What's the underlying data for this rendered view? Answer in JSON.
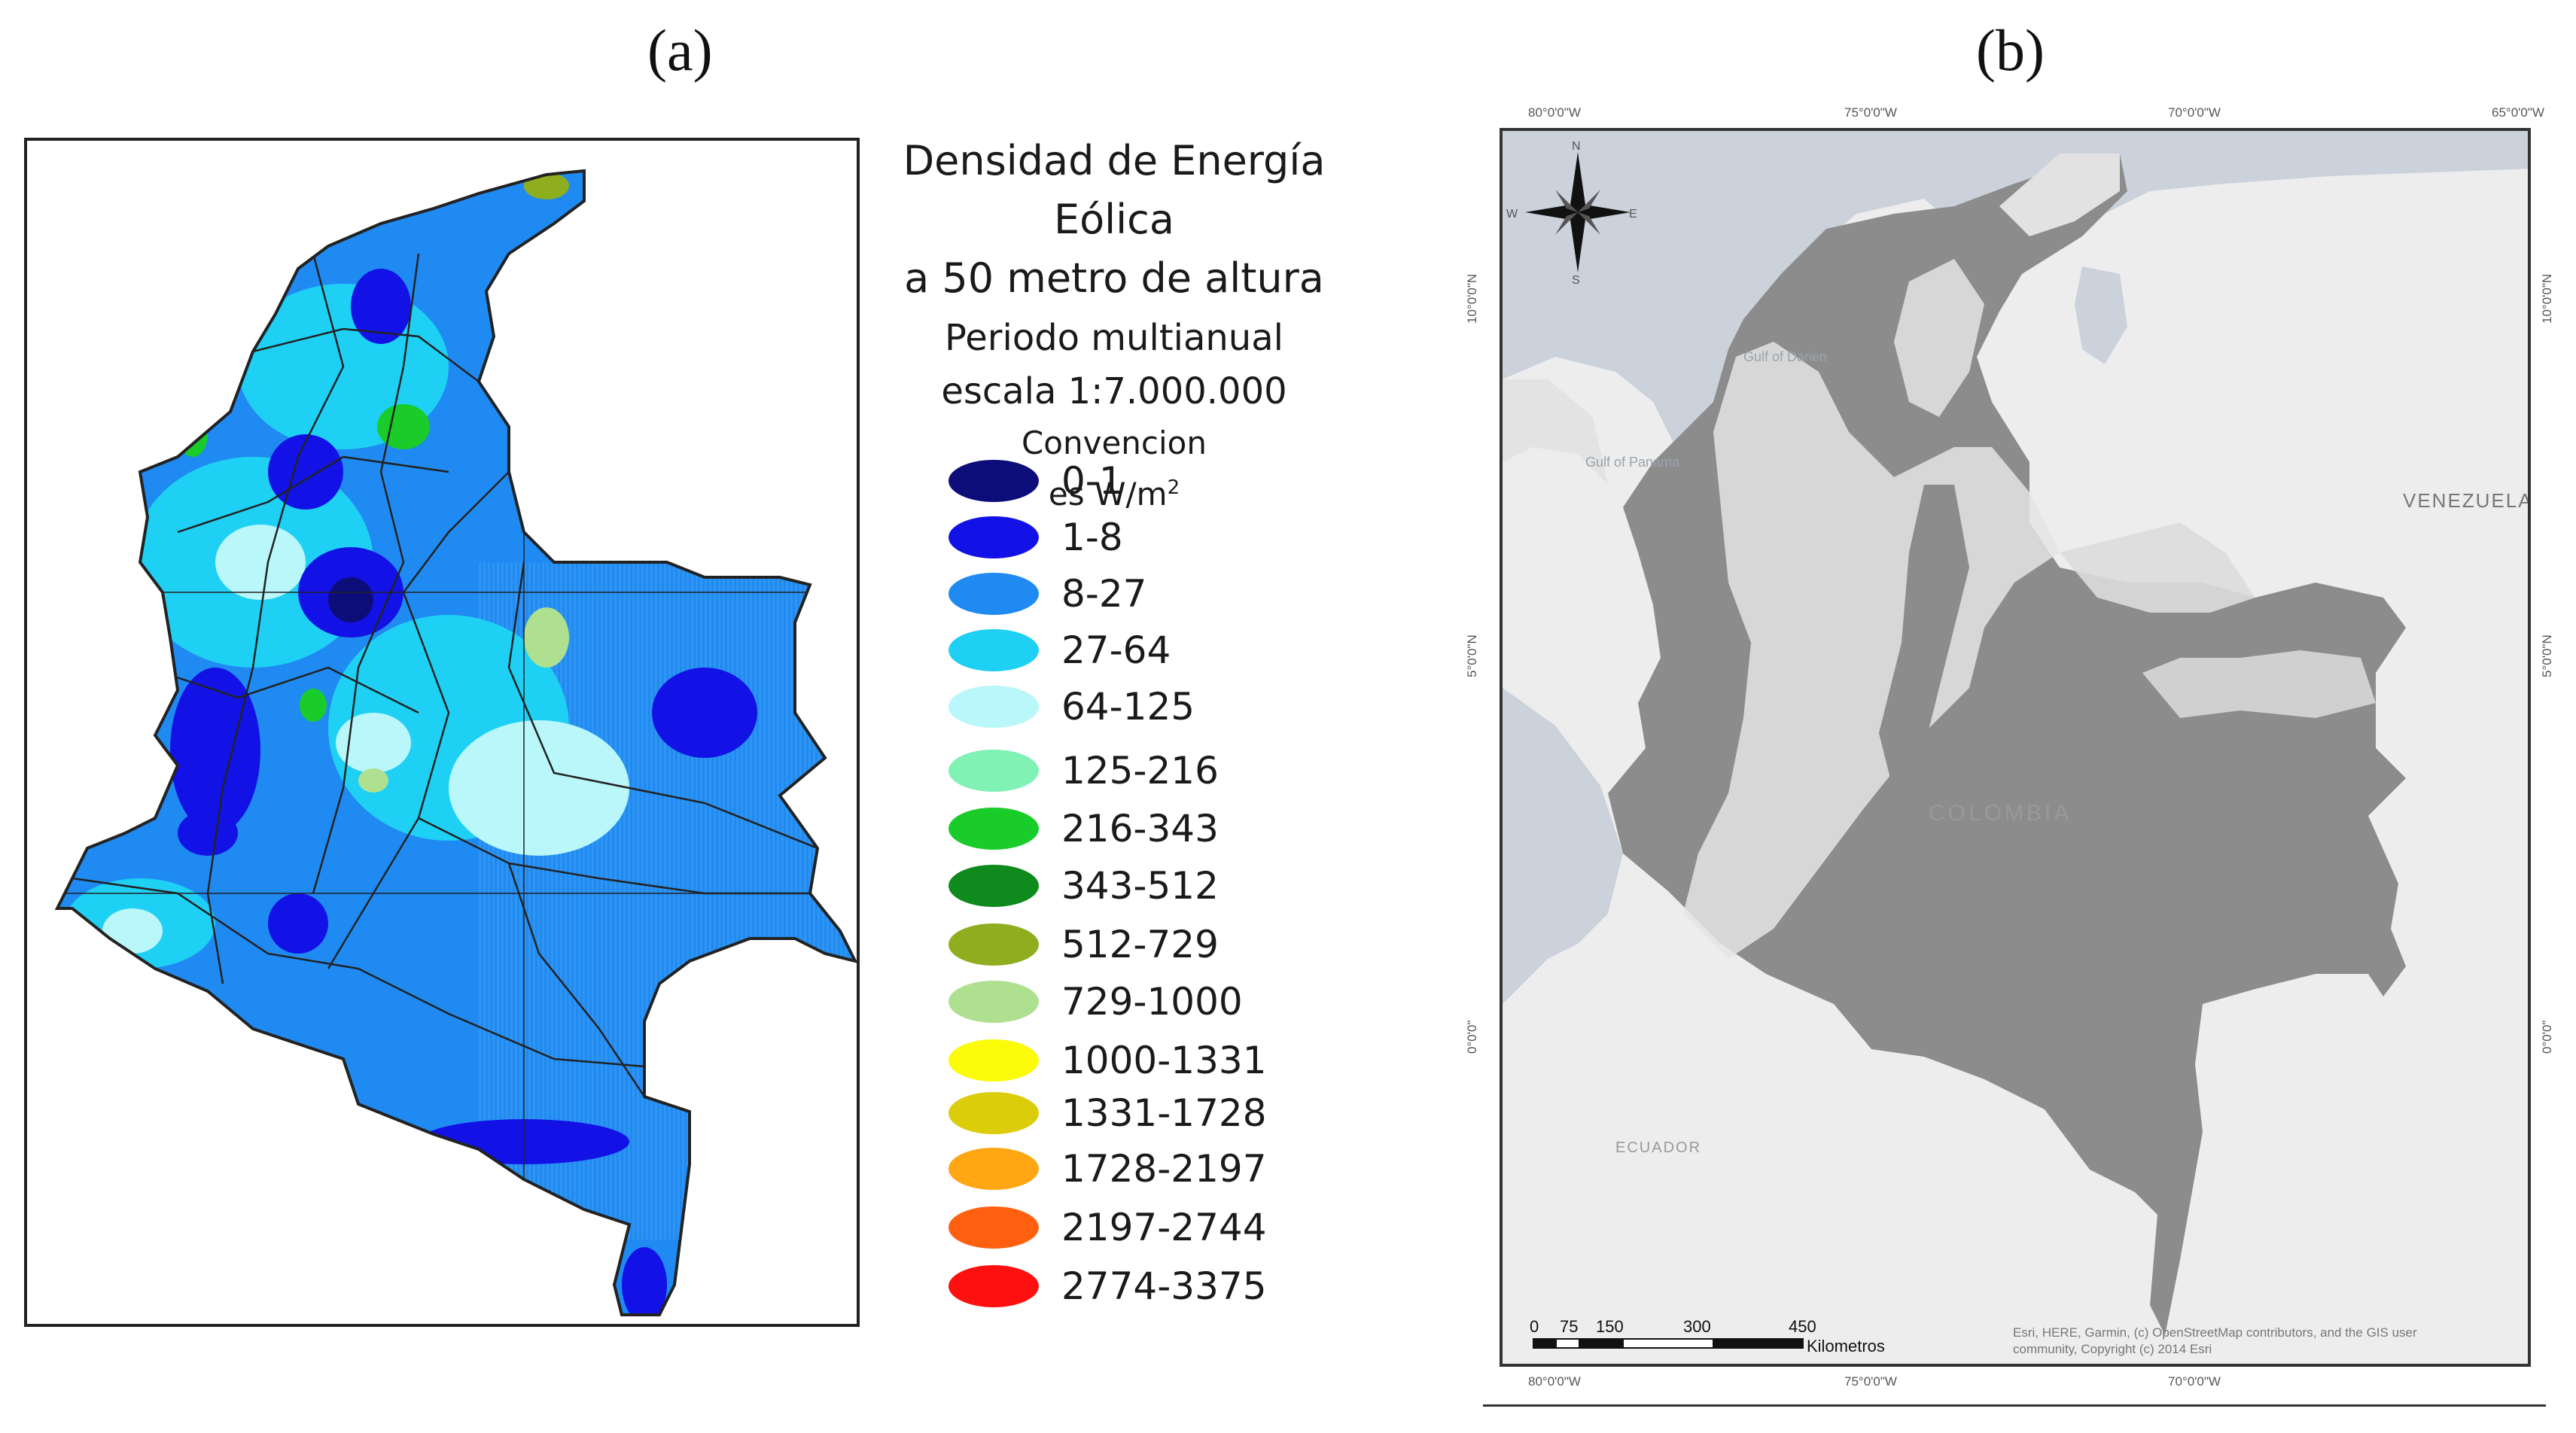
{
  "panel_a": {
    "label": "(a)",
    "legend": {
      "title_line1": "Densidad de Energía Eólica",
      "title_line2": "a 50 metro de altura",
      "period": "Periodo multianual",
      "scale": "escala 1:7.000.000",
      "convention_line1": "Convencion",
      "convention_line2_prefix": "es W/m",
      "convention_line2_sup": "2",
      "classes": [
        {
          "label": "0-1",
          "color": "#0d0d7a"
        },
        {
          "label": "1-8",
          "color": "#1212e6"
        },
        {
          "label": "8-27",
          "color": "#1f8af2"
        },
        {
          "label": "27-64",
          "color": "#1fd0f5"
        },
        {
          "label": "64-125",
          "color": "#b9f7fa"
        },
        {
          "label": "125-216",
          "color": "#7ff2b4"
        },
        {
          "label": "216-343",
          "color": "#19cc2a"
        },
        {
          "label": "343-512",
          "color": "#0f8a1d"
        },
        {
          "label": "512-729",
          "color": "#8fae1f"
        },
        {
          "label": "729-1000",
          "color": "#aee090"
        },
        {
          "label": "1000-1331",
          "color": "#fbfb0a"
        },
        {
          "label": "1331-1728",
          "color": "#dccd0a"
        },
        {
          "label": "1728-2197",
          "color": "#ffa612"
        },
        {
          "label": "2197-2744",
          "color": "#ff6010"
        },
        {
          "label": "2774-3375",
          "color": "#ff1010"
        }
      ]
    }
  },
  "panel_b": {
    "label": "(b)",
    "lon_labels": [
      "80°0'0\"W",
      "75°0'0\"W",
      "70°0'0\"W",
      "65°0'0\"W"
    ],
    "lat_labels": [
      "10°0'0\"N",
      "5°0'0\"N",
      "0°0'0\""
    ],
    "place_labels": {
      "gulf_darien": "Gulf of Darien",
      "gulf_panama": "Gulf of Panama",
      "venezuela": "VENEZUELA",
      "colombia": "COLOMBIA",
      "ecuador": "ECUADOR"
    },
    "compass": {
      "n": "N",
      "s": "S",
      "e": "E",
      "w": "W"
    },
    "scale_bar": {
      "ticks": [
        "0",
        "75",
        "150",
        "300",
        "450"
      ],
      "unit": "Kilometros"
    },
    "attribution": "Esri, HERE, Garmin, (c) OpenStreetMap contributors, and the GIS user community, Copyright (c) 2014 Esri",
    "colors": {
      "sea": "#cbd2dc",
      "land": "#ededed",
      "colombia": "#8c8c8c",
      "highlands": "#e9e9e9"
    }
  }
}
